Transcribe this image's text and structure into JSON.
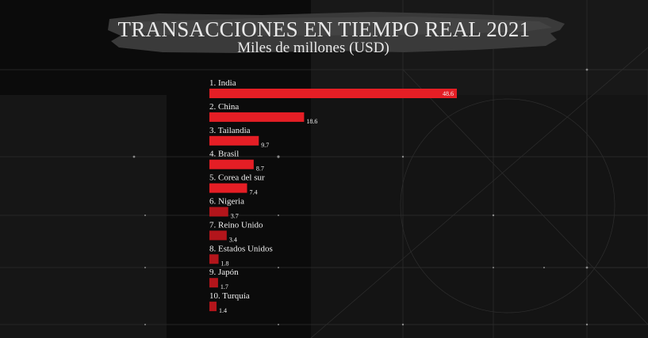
{
  "colors": {
    "background": "#0b0b0b",
    "bar_light": "#e51e25",
    "bar_dark": "#b3151b",
    "text": "#f2f2f2"
  },
  "chart_data": {
    "type": "bar",
    "orientation": "horizontal",
    "title": "TRANSACCIONES EN TIEMPO REAL 2021",
    "subtitle": "Miles de millones (USD)",
    "categories": [
      "1. India",
      "2. China",
      "3. Tailandia",
      "4. Brasil",
      "5. Corea del sur",
      "6. Nigeria",
      "7. Reino Unido",
      "8. Estados Unidos",
      "9. Japón",
      "10. Turquía"
    ],
    "values": [
      48.6,
      18.6,
      9.7,
      8.7,
      7.4,
      3.7,
      3.4,
      1.8,
      1.7,
      1.4
    ],
    "value_labels": [
      "48.6",
      "18.6",
      "9.7",
      "8.7",
      "7.4",
      "3.7",
      "3.4",
      "1.8",
      "1.7",
      "1.4"
    ],
    "xlim": [
      0,
      48.6
    ],
    "grid": false,
    "legend": "none"
  }
}
